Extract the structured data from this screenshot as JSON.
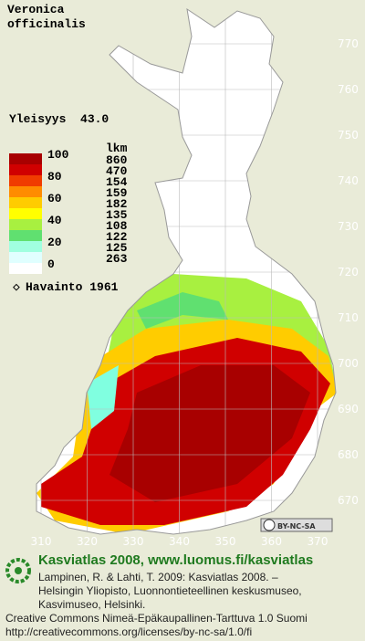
{
  "header": {
    "genus": "Veronica",
    "species": "officinalis",
    "frequency": "Yleisyys  43.0"
  },
  "legend": {
    "scale_labels": [
      100,
      80,
      60,
      40,
      20,
      0
    ],
    "count_header": "lkm",
    "counts": [
      860,
      470,
      154,
      159,
      182,
      135,
      108,
      122,
      125,
      263
    ],
    "colors": [
      "#a80000",
      "#d00000",
      "#f03c00",
      "#ff8c00",
      "#ffcc00",
      "#ffff00",
      "#a8f040",
      "#60e070",
      "#a0ffe0",
      "#e0ffff"
    ],
    "observation": "Havainto 1961"
  },
  "map": {
    "xticks": [
      310,
      320,
      330,
      340,
      350,
      360,
      370
    ],
    "yticks": [
      770,
      760,
      750,
      740,
      730,
      720,
      710,
      700,
      690,
      680,
      670
    ],
    "license_badge": "BY-NC-SA"
  },
  "footer": {
    "title": "Kasviatlas 2008, www.luomus.fi/kasviatlas",
    "citation": [
      "Lampinen, R. & Lahti, T. 2009: Kasviatlas 2008. –",
      "Helsingin Yliopisto, Luonnontieteellinen keskusmuseo,",
      "Kasvimuseo, Helsinki."
    ],
    "license": "Creative Commons Nimeä-Epäkaupallinen-Tarttuva 1.0 Suomi",
    "url": "http://creativecommons.org/licenses/by-nc-sa/1.0/fi"
  }
}
